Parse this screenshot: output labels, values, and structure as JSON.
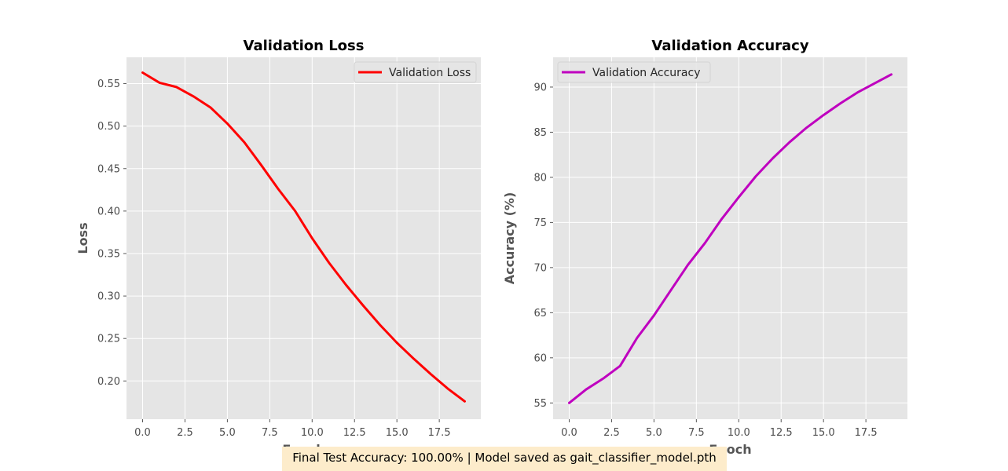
{
  "chart_data": [
    {
      "type": "line",
      "title": "Validation Loss",
      "xlabel": "Epoch",
      "ylabel": "Loss",
      "xlim": [
        -0.95,
        19.95
      ],
      "ylim": [
        0.155,
        0.581
      ],
      "grid": true,
      "legend_placement": "top-right",
      "x_ticks": [
        "0.0",
        "2.5",
        "5.0",
        "7.5",
        "10.0",
        "12.5",
        "15.0",
        "17.5"
      ],
      "y_ticks": [
        "0.20",
        "0.25",
        "0.30",
        "0.35",
        "0.40",
        "0.45",
        "0.50",
        "0.55"
      ],
      "series": [
        {
          "name": "Validation Loss",
          "color": "#ff0000",
          "x": [
            0,
            1,
            2,
            3,
            4,
            5,
            6,
            7,
            8,
            9,
            10,
            11,
            12,
            13,
            14,
            15,
            16,
            17,
            18,
            19
          ],
          "y": [
            0.563,
            0.551,
            0.546,
            0.535,
            0.522,
            0.503,
            0.481,
            0.454,
            0.426,
            0.4,
            0.368,
            0.339,
            0.313,
            0.289,
            0.266,
            0.245,
            0.226,
            0.208,
            0.191,
            0.176
          ]
        }
      ]
    },
    {
      "type": "line",
      "title": "Validation Accuracy",
      "xlabel": "Epoch",
      "ylabel": "Accuracy (%)",
      "xlim": [
        -0.95,
        19.95
      ],
      "ylim": [
        53.2,
        93.3
      ],
      "grid": true,
      "legend_placement": "top-left",
      "x_ticks": [
        "0.0",
        "2.5",
        "5.0",
        "7.5",
        "10.0",
        "12.5",
        "15.0",
        "17.5"
      ],
      "y_ticks": [
        "55",
        "60",
        "65",
        "70",
        "75",
        "80",
        "85",
        "90"
      ],
      "series": [
        {
          "name": "Validation Accuracy",
          "color": "#bf00bf",
          "x": [
            0,
            1,
            2,
            3,
            4,
            5,
            6,
            7,
            8,
            9,
            10,
            11,
            12,
            13,
            14,
            15,
            16,
            17,
            18,
            19
          ],
          "y": [
            55.0,
            56.5,
            57.7,
            59.1,
            62.2,
            64.7,
            67.5,
            70.3,
            72.7,
            75.4,
            77.8,
            80.1,
            82.1,
            83.9,
            85.5,
            86.9,
            88.2,
            89.4,
            90.4,
            91.4
          ]
        }
      ]
    }
  ],
  "footer": {
    "text": "Final Test Accuracy: 100.00% | Model saved as gait_classifier_model.pth",
    "background": "#fdeccb"
  },
  "style": {
    "plot_background": "#e5e5e5",
    "grid_color": "#ffffff"
  }
}
